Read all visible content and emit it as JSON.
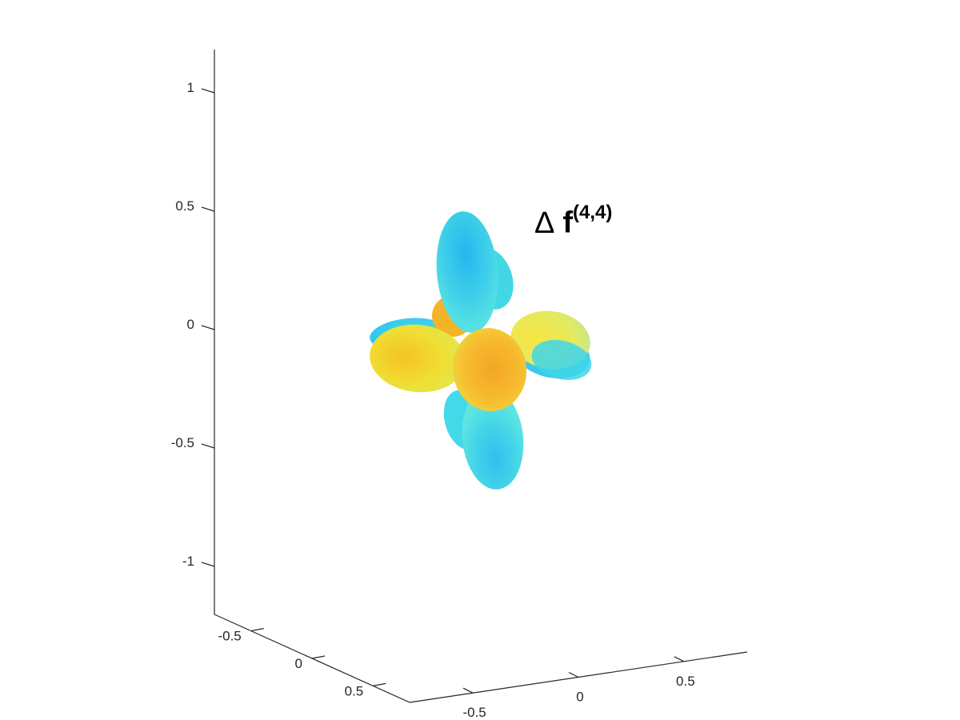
{
  "chart_data": {
    "type": "surface3d",
    "title": "",
    "annotation": {
      "symbol": "Δ",
      "base": "f",
      "superscript": "(4,4)"
    },
    "z_axis": {
      "ticks": [
        1,
        0.5,
        0,
        -0.5,
        -1
      ],
      "tick_labels": [
        "1",
        "0.5",
        "0",
        "-0.5",
        "-1"
      ],
      "range": [
        -1.2,
        1.2
      ]
    },
    "y_axis": {
      "ticks": [
        -0.5,
        0,
        0.5
      ],
      "tick_labels": [
        "-0.5",
        "0",
        "0.5"
      ],
      "range": [
        -0.8,
        0.8
      ]
    },
    "x_axis": {
      "ticks": [
        -0.5,
        0,
        0.5
      ],
      "tick_labels": [
        "-0.5",
        "0",
        "0.5"
      ],
      "range": [
        -0.8,
        0.8
      ]
    },
    "grid": false,
    "colormap": "parula",
    "colors": {
      "cyan": "#2ac8f0",
      "aqua": "#3ee6e0",
      "yellow": "#f2e02a",
      "orange": "#f7a21e"
    }
  }
}
